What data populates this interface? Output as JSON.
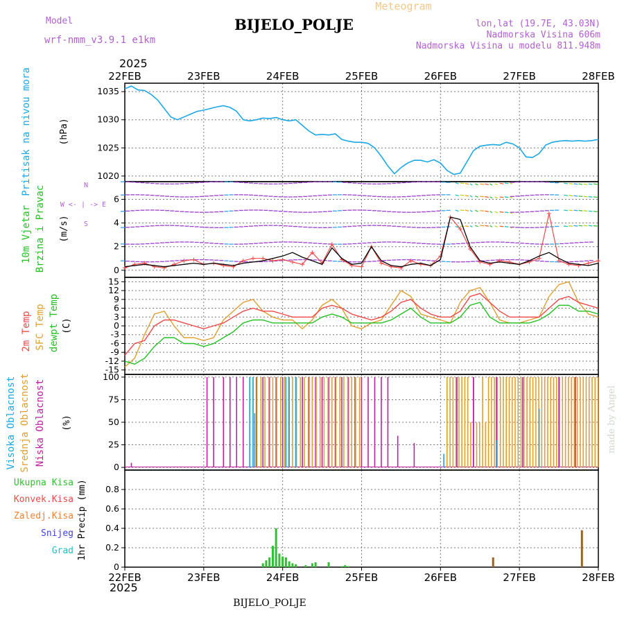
{
  "header": {
    "model_label": "Model",
    "model_name": "wrf-nmm_v3.9.1 e1km",
    "title": "BIJELO_POLJE",
    "meteogram": "Meteogram",
    "lonlat": "lon,lat (19.7E, 43.03N)",
    "altitude": "Nadmorska Visina 606m",
    "model_altitude": "Nadmorska Visina u modelu 811.948m",
    "year_top": "2025",
    "year_bottom": "2025",
    "footer": "BIJELO_POLJE",
    "credit": "made by Angel"
  },
  "colors": {
    "pressure": "#1aa7e6",
    "temp2m": "#f04848",
    "sfc": "#e0a030",
    "dew": "#22c022",
    "high_cloud": "#1aa7e6",
    "mid_cloud": "#e0a030",
    "low_cloud": "#c020a0",
    "purple": "#9a40d0",
    "total_rain": "#30c030",
    "conv_rain": "#f04848",
    "freezing_rain": "#f08030",
    "snow": "#4040e0",
    "hail": "#20c0c0"
  },
  "x_axis": {
    "dates": [
      "22FEB",
      "23FEB",
      "24FEB",
      "25FEB",
      "26FEB",
      "27FEB",
      "28FEB"
    ],
    "hours_total": 144
  },
  "chart_data": [
    {
      "type": "line",
      "name": "pressure",
      "ylabel_left": "Pritisak na nivou mora",
      "unit": "(hPa)",
      "ylim": [
        1019,
        1036.5
      ],
      "yticks": [
        1020,
        1025,
        1030,
        1035
      ],
      "x": [
        0,
        2,
        4,
        6,
        8,
        10,
        12,
        14,
        16,
        18,
        20,
        22,
        24,
        26,
        28,
        30,
        32,
        34,
        36,
        38,
        40,
        42,
        44,
        46,
        48,
        50,
        52,
        54,
        56,
        58,
        60,
        62,
        64,
        66,
        68,
        70,
        72,
        74,
        76,
        78,
        80,
        82,
        84,
        86,
        88,
        90,
        92,
        94,
        96,
        98,
        100,
        102,
        104,
        106,
        108,
        110,
        112,
        114,
        116,
        118,
        120,
        122,
        124,
        126,
        128,
        130,
        132,
        134,
        136,
        138,
        140,
        142,
        144
      ],
      "values": [
        1035.5,
        1036,
        1035.3,
        1035.2,
        1034.5,
        1033.5,
        1032,
        1030.5,
        1030,
        1030.5,
        1031,
        1031.5,
        1031.7,
        1032,
        1032.3,
        1032.5,
        1032.2,
        1031.5,
        1030,
        1029.8,
        1030,
        1030.3,
        1030.2,
        1030.4,
        1030,
        1029.8,
        1030,
        1029,
        1028,
        1027.3,
        1027.4,
        1027.3,
        1027.5,
        1026.5,
        1026.2,
        1026,
        1026,
        1025.8,
        1025,
        1023.5,
        1021.8,
        1020.4,
        1021.5,
        1022.3,
        1022.8,
        1022.8,
        1022.5,
        1022.9,
        1022.3,
        1021,
        1020.3,
        1020.5,
        1022.5,
        1024.5,
        1025.3,
        1025.5,
        1025.6,
        1025.5,
        1026,
        1025.7,
        1025,
        1023.4,
        1023.3,
        1024,
        1025.5,
        1026,
        1026.2,
        1026.3,
        1026.2,
        1026.3,
        1026.2,
        1026.3,
        1026.5
      ]
    },
    {
      "type": "line",
      "name": "wind",
      "ylabel_left_1": "10m Vjetar",
      "ylabel_left_2": "Brzina i Pravac",
      "unit": "(m/s)",
      "compass_legend": "W <- | -> E",
      "compass_n": "N",
      "compass_s": "S",
      "ylim": [
        -0.6,
        7.5
      ],
      "yticks": [
        0,
        2,
        4,
        6
      ],
      "arrow_rows": [
        0.8,
        2.3,
        3.7,
        5.0,
        6.3,
        7.4
      ],
      "x": [
        0,
        3,
        6,
        9,
        12,
        15,
        18,
        21,
        24,
        27,
        30,
        33,
        36,
        39,
        42,
        45,
        48,
        51,
        54,
        57,
        60,
        63,
        66,
        69,
        72,
        75,
        78,
        81,
        84,
        87,
        90,
        93,
        96,
        99,
        102,
        105,
        108,
        111,
        114,
        117,
        120,
        123,
        126,
        129,
        132,
        135,
        138,
        141,
        144
      ],
      "speed": [
        0.3,
        0.4,
        0.5,
        0.4,
        0.3,
        0.4,
        0.5,
        0.6,
        0.5,
        0.6,
        0.5,
        0.4,
        0.6,
        0.7,
        0.8,
        1.0,
        1.2,
        1.5,
        1.1,
        0.8,
        0.5,
        1.9,
        1.0,
        0.5,
        0.6,
        2.0,
        0.8,
        0.4,
        0.3,
        0.5,
        0.6,
        0.4,
        0.9,
        4.5,
        4.3,
        2.0,
        0.8,
        0.6,
        0.7,
        0.6,
        0.5,
        0.8,
        1.2,
        1.5,
        1.0,
        0.6,
        0.5,
        0.4,
        0.6
      ],
      "gust": [
        0.2,
        0.5,
        0.6,
        0.3,
        0.2,
        0.5,
        0.8,
        0.9,
        0.5,
        0.6,
        0.4,
        0.3,
        0.8,
        1.0,
        1.0,
        0.8,
        0.9,
        0.7,
        0.5,
        1.5,
        0.6,
        2.2,
        0.9,
        0.4,
        0.3,
        2.0,
        0.6,
        0.3,
        0.2,
        0.8,
        0.5,
        0.4,
        1.2,
        4.5,
        3.5,
        1.8,
        0.7,
        0.5,
        0.8,
        0.7,
        0.5,
        0.7,
        1.0,
        4.8,
        0.8,
        0.5,
        0.4,
        0.6,
        0.8
      ]
    },
    {
      "type": "line",
      "name": "temperature",
      "ylabel_left_1": "2m Temp",
      "ylabel_left_2": "SFC Temp",
      "ylabel_left_3": "dewpt Temp",
      "unit": "(C)",
      "ylim": [
        -16.5,
        16.5
      ],
      "yticks": [
        15,
        12,
        9,
        6,
        3,
        0,
        -3,
        -6,
        -9,
        -12,
        -15
      ],
      "x": [
        0,
        3,
        6,
        9,
        12,
        15,
        18,
        21,
        24,
        27,
        30,
        33,
        36,
        39,
        42,
        45,
        48,
        51,
        54,
        57,
        60,
        63,
        66,
        69,
        72,
        75,
        78,
        81,
        84,
        87,
        90,
        93,
        96,
        99,
        102,
        105,
        108,
        111,
        114,
        117,
        120,
        123,
        126,
        129,
        132,
        135,
        138,
        141,
        144
      ],
      "series": [
        {
          "key": "sfc",
          "values": [
            -14,
            -11,
            -3,
            4,
            5,
            0,
            -4,
            -4,
            -5,
            -4,
            2,
            5,
            8,
            9,
            5,
            3,
            2,
            2,
            -1,
            2,
            7,
            9,
            6,
            0,
            -1,
            1,
            2,
            7,
            12,
            10,
            4,
            3,
            2,
            1,
            8,
            12,
            13,
            8,
            2,
            1,
            1,
            2,
            3,
            10,
            14,
            15,
            8,
            4,
            3
          ]
        },
        {
          "key": "temp2m",
          "values": [
            -10,
            -6,
            -5,
            0,
            2,
            2,
            1,
            0,
            -1,
            0,
            1,
            3,
            5,
            6,
            5,
            5,
            4,
            3,
            3,
            3,
            6,
            7,
            6,
            4,
            3,
            2,
            3,
            5,
            8,
            9,
            6,
            4,
            3,
            3,
            5,
            10,
            11,
            8,
            5,
            3,
            3,
            3,
            3,
            6,
            9,
            10,
            8,
            7,
            6
          ]
        },
        {
          "key": "dew",
          "values": [
            -12,
            -13,
            -11,
            -7,
            -4,
            -4,
            -6,
            -6,
            -7,
            -6,
            -4,
            -2,
            1,
            2,
            2,
            1,
            1,
            1,
            1,
            1,
            3,
            4,
            3,
            1,
            1,
            1,
            1,
            2,
            4,
            6,
            3,
            1,
            1,
            1,
            3,
            7,
            8,
            3,
            1,
            1,
            1,
            1,
            2,
            4,
            7,
            7,
            5,
            5,
            4
          ]
        }
      ]
    },
    {
      "type": "bar",
      "name": "cloud",
      "ylabel_left_1": "Visoka Oblacnost",
      "ylabel_left_2": "Srednja Oblacnost",
      "ylabel_left_3": "Niska Oblacnost",
      "unit": "(%)",
      "ylim": [
        -3,
        103
      ],
      "yticks": [
        0,
        25,
        50,
        75,
        100
      ]
    },
    {
      "type": "bar",
      "name": "precip",
      "ylabel": "1hr Precip (mm)",
      "legend": [
        "Ukupna Kisa",
        "Konvek.Kisa",
        "Zaledj.Kisa",
        "Snijeg",
        "Grad"
      ],
      "ylim": [
        0,
        1.0
      ],
      "yticks": [
        0,
        0.2,
        0.4,
        0.6,
        0.8
      ],
      "total": [
        [
          42,
          0.04
        ],
        [
          43,
          0.07
        ],
        [
          44,
          0.1
        ],
        [
          45,
          0.22
        ],
        [
          46,
          0.4
        ],
        [
          47,
          0.14
        ],
        [
          48,
          0.11
        ],
        [
          49,
          0.1
        ],
        [
          50,
          0.06
        ],
        [
          51,
          0.04
        ],
        [
          52,
          0.03
        ],
        [
          55,
          0.02
        ],
        [
          57,
          0.04
        ],
        [
          58,
          0.05
        ],
        [
          62,
          0.05
        ],
        [
          66,
          0.01
        ],
        [
          67,
          0.02
        ],
        [
          68,
          0.01
        ],
        [
          112,
          0.1
        ],
        [
          139,
          0.38
        ]
      ],
      "freezing": [
        [
          112,
          0.1
        ],
        [
          139,
          0.38
        ]
      ]
    }
  ]
}
